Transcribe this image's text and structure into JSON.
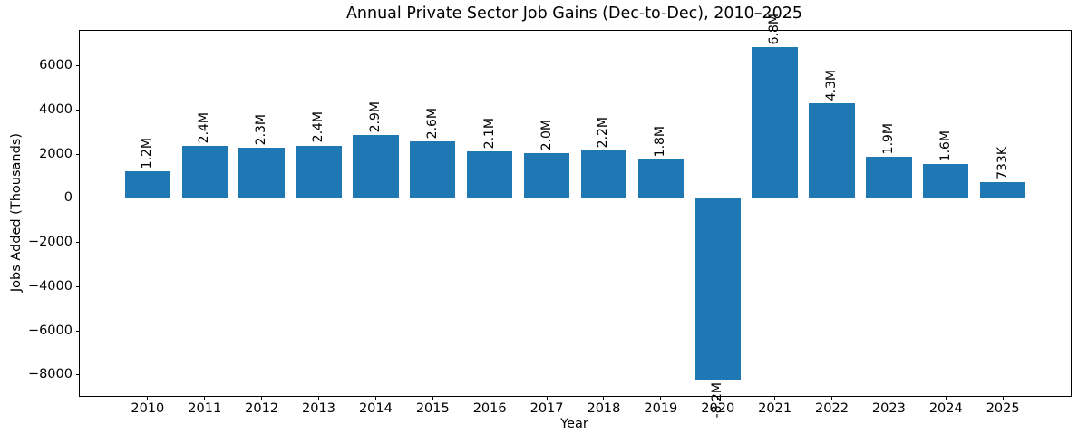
{
  "chart_data": {
    "type": "bar",
    "title": "Annual Private Sector Job Gains (Dec-to-Dec), 2010–2025",
    "xlabel": "Year",
    "ylabel": "Jobs Added (Thousands)",
    "unit": "thousands of jobs",
    "categories": [
      "2010",
      "2011",
      "2012",
      "2013",
      "2014",
      "2015",
      "2016",
      "2017",
      "2018",
      "2019",
      "2020",
      "2021",
      "2022",
      "2023",
      "2024",
      "2025"
    ],
    "x_values": [
      2010,
      2011,
      2012,
      2013,
      2014,
      2015,
      2016,
      2017,
      2018,
      2019,
      2020,
      2021,
      2022,
      2023,
      2024,
      2025
    ],
    "values": [
      1220,
      2370,
      2280,
      2390,
      2870,
      2570,
      2110,
      2030,
      2170,
      1760,
      -8200,
      6830,
      4280,
      1870,
      1550,
      733
    ],
    "bar_labels": [
      "1.2M",
      "2.4M",
      "2.3M",
      "2.4M",
      "2.9M",
      "2.6M",
      "2.1M",
      "2.0M",
      "2.2M",
      "1.8M",
      "-8.2M",
      "6.8M",
      "4.3M",
      "1.9M",
      "1.6M",
      "733K"
    ],
    "bar_label_rotation_deg": 90,
    "y_ticks": [
      6000,
      4000,
      2000,
      0,
      -2000,
      -4000,
      -6000,
      -8000
    ],
    "y_tick_labels": [
      "6000",
      "4000",
      "2000",
      "0",
      "−2000",
      "−4000",
      "−6000",
      "−8000"
    ],
    "ylim": [
      -8950,
      7580
    ],
    "xlim": [
      2008.81,
      2026.19
    ],
    "bar_width_units": 0.8,
    "bar_color": "#1f77b4",
    "zero_line_color": "#58a0cc",
    "axis_color": "#000000",
    "grid": false,
    "legend": null
  }
}
